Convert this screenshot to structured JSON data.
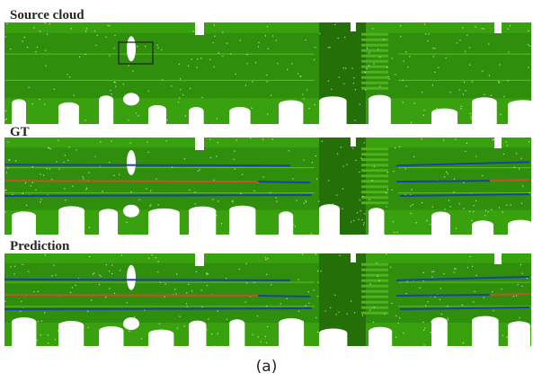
{
  "figure": {
    "caption": "(a)",
    "colors": {
      "background": "#ffffff",
      "road": "#2f8f0c",
      "road_dark": "#256f08",
      "vegetation": "#3aa10e",
      "points_white": "#ffffff",
      "lane_boundary": "#1f3fa8",
      "lane_center": "#c2532a",
      "highlight_box": "#222222"
    },
    "panels": [
      {
        "id": "source",
        "title": "Source cloud",
        "has_lanes": false,
        "has_highlight_box": true
      },
      {
        "id": "gt",
        "title": "GT",
        "has_lanes": true,
        "has_highlight_box": false
      },
      {
        "id": "prediction",
        "title": "Prediction",
        "has_lanes": true,
        "has_highlight_box": false
      }
    ]
  }
}
